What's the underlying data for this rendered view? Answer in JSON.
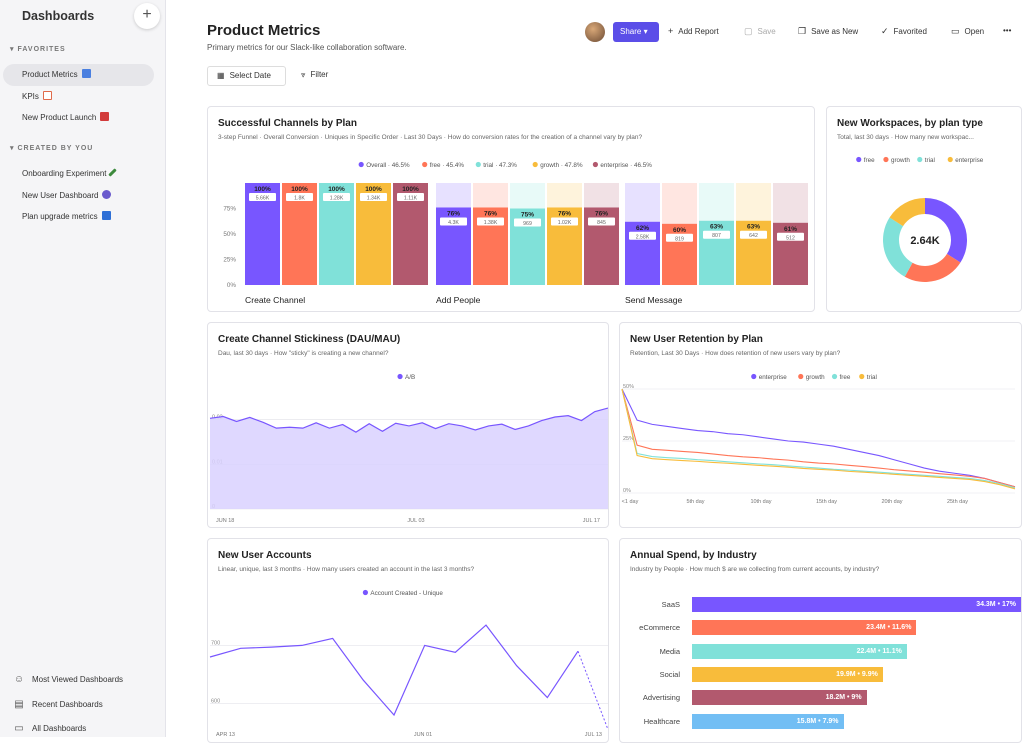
{
  "sidebar": {
    "title": "Dashboards",
    "add": "+",
    "favorites_header": "FAVORITES",
    "created_header": "CREATED BY YOU",
    "favorites": [
      {
        "label": "Product Metrics",
        "emoji_color": "#4a7fe0"
      },
      {
        "label": "KPIs",
        "emoji_color": "#e06a4a"
      },
      {
        "label": "New Product Launch",
        "emoji_color": "#d23b3b"
      }
    ],
    "created": [
      {
        "label": "Onboarding Experiment",
        "emoji_color": "#3d8a3d"
      },
      {
        "label": "New User Dashboard",
        "emoji_color": "#6a5acd"
      },
      {
        "label": "Plan upgrade metrics",
        "emoji_color": "#2e6fd6"
      }
    ],
    "bottom": [
      {
        "label": "Most Viewed Dashboards",
        "icon": "☺"
      },
      {
        "label": "Recent Dashboards",
        "icon": "▤"
      },
      {
        "label": "All Dashboards",
        "icon": "▭"
      }
    ]
  },
  "header": {
    "title": "Product Metrics",
    "subtitle": "Primary metrics for our Slack-like collaboration software.",
    "share": "Share",
    "add_report": "Add Report",
    "save": "Save",
    "save_as_new": "Save as New",
    "favorited": "Favorited",
    "open": "Open",
    "more": "•••",
    "select_date": "Select Date",
    "filter": "Filter"
  },
  "colors": {
    "accent": "#5b4ee8",
    "overall": "#7856ff",
    "free": "#ff7557",
    "trial": "#80e1d9",
    "growth": "#f8bc3b",
    "enterprise": "#b2596e",
    "healthcare": "#72bef4"
  },
  "cards": {
    "channels": {
      "title": "Successful Channels by Plan",
      "subtitle": "3-step Funnel · Overall Conversion · Uniques in Specific Order · Last 30 Days · How do conversion rates for the creation of a channel vary by plan?"
    },
    "workspaces": {
      "title": "New Workspaces, by plan type",
      "subtitle": "Total, last 30 days · How many new workspac...",
      "center": "2.64K"
    },
    "stickiness": {
      "title": "Create Channel Stickiness (DAU/MAU)",
      "subtitle": "Dau, last 30 days · How \"sticky\" is creating a new channel?"
    },
    "retention": {
      "title": "New User Retention by Plan",
      "subtitle": "Retention, Last 30 Days · How does retention of new users vary by plan?"
    },
    "accounts": {
      "title": "New User Accounts",
      "subtitle": "Linear, unique, last 3 months · How many users created an account in the last 3 months?"
    },
    "spend": {
      "title": "Annual Spend, by Industry",
      "subtitle": "Industry by People · How much $ are we collecting from current accounts, by industry?"
    }
  },
  "chart_data": [
    {
      "id": "funnel",
      "type": "bar",
      "legend": [
        "Overall · 46.5%",
        "free · 45.4%",
        "trial · 47.3%",
        "growth · 47.8%",
        "enterprise · 46.5%"
      ],
      "categories": [
        "Create Channel",
        "Add People",
        "Send Message"
      ],
      "series": [
        {
          "name": "Overall",
          "pct": [
            100,
            76,
            62
          ],
          "labels": [
            "5.66K",
            "4.3K",
            "2.58K"
          ]
        },
        {
          "name": "free",
          "pct": [
            100,
            76,
            60
          ],
          "labels": [
            "1.8K",
            "1.38K",
            "819"
          ]
        },
        {
          "name": "trial",
          "pct": [
            100,
            75,
            63
          ],
          "labels": [
            "1.28K",
            "969",
            "807"
          ]
        },
        {
          "name": "growth",
          "pct": [
            100,
            76,
            63
          ],
          "labels": [
            "1.34K",
            "1.02K",
            "642"
          ]
        },
        {
          "name": "enterprise",
          "pct": [
            100,
            76,
            61
          ],
          "labels": [
            "1.11K",
            "845",
            "512"
          ]
        }
      ],
      "yticks": [
        "0%",
        "25%",
        "50%",
        "75%"
      ],
      "ylim": [
        0,
        100
      ]
    },
    {
      "id": "workspaces",
      "type": "pie",
      "legend": [
        "free",
        "growth",
        "trial",
        "enterprise"
      ],
      "slices": [
        {
          "name": "enterprise",
          "value": 34
        },
        {
          "name": "free",
          "value": 24
        },
        {
          "name": "trial",
          "value": 26
        },
        {
          "name": "growth",
          "value": 16
        }
      ]
    },
    {
      "id": "stickiness",
      "type": "area",
      "legend": [
        "A/B"
      ],
      "ylim": [
        0,
        0.03
      ],
      "yticks": [
        "0",
        "0.01",
        "0.02"
      ],
      "xticks": [
        "JUN 18",
        "JUL 03",
        "JUL 17"
      ],
      "values": [
        0.0203,
        0.0207,
        0.0196,
        0.0205,
        0.0194,
        0.0181,
        0.0183,
        0.0181,
        0.0193,
        0.0181,
        0.0189,
        0.0172,
        0.0191,
        0.0174,
        0.0192,
        0.0186,
        0.0193,
        0.018,
        0.0191,
        0.0186,
        0.0177,
        0.0186,
        0.019,
        0.0178,
        0.0186,
        0.0198,
        0.0206,
        0.0209,
        0.0198,
        0.0218,
        0.0226
      ]
    },
    {
      "id": "retention",
      "type": "line",
      "legend": [
        "enterprise",
        "growth",
        "free",
        "trial"
      ],
      "xticks": [
        "<1 day",
        "5th day",
        "10th day",
        "15th day",
        "20th day",
        "25th day"
      ],
      "yticks": [
        "0%",
        "25%",
        "50%"
      ],
      "ylim": [
        0,
        50
      ],
      "series": [
        {
          "name": "enterprise",
          "values": [
            50,
            35,
            33,
            32,
            31,
            30,
            29.5,
            28.5,
            28,
            27,
            26,
            25,
            24.5,
            23.5,
            22.5,
            21,
            19.5,
            18,
            16,
            14,
            12,
            10.5,
            9.5,
            8.5,
            7,
            5,
            3
          ]
        },
        {
          "name": "growth",
          "values": [
            50,
            23,
            21,
            20.5,
            20,
            19.5,
            18.8,
            18,
            17.4,
            17,
            16.3,
            15.8,
            15,
            14.4,
            14,
            13.3,
            12.7,
            12,
            11.2,
            10.6,
            10,
            9.3,
            8.7,
            8,
            7,
            5,
            3
          ]
        },
        {
          "name": "free",
          "values": [
            50,
            19,
            17.5,
            17,
            16.6,
            16,
            15.6,
            15,
            14.5,
            14,
            13.6,
            13,
            12.5,
            12,
            11.4,
            11,
            10.5,
            10,
            9.5,
            9,
            8.5,
            8,
            7.5,
            7,
            6,
            4.5,
            2.5
          ]
        },
        {
          "name": "trial",
          "values": [
            50,
            18,
            16.5,
            16,
            15.6,
            15.2,
            14.7,
            14.3,
            13.8,
            13.3,
            12.9,
            12.4,
            11.8,
            11.4,
            11,
            10.4,
            10,
            9.5,
            9,
            8.5,
            8,
            7.5,
            7,
            6.5,
            5.5,
            4,
            2
          ]
        }
      ]
    },
    {
      "id": "accounts",
      "type": "line",
      "legend": [
        "Account Created - Unique"
      ],
      "yticks": [
        "600",
        "700"
      ],
      "xticks": [
        "APR 13",
        "JUN 01",
        "JUL 13"
      ],
      "ylim": [
        530,
        780
      ],
      "values": [
        680,
        695,
        697,
        700,
        712,
        640,
        580,
        700,
        688,
        735,
        665,
        610,
        690
      ],
      "projected": [
        690,
        555
      ]
    },
    {
      "id": "spend",
      "type": "bar",
      "orientation": "horizontal",
      "categories": [
        "SaaS",
        "eCommerce",
        "Media",
        "Social",
        "Advertising",
        "Healthcare"
      ],
      "values": [
        34.3,
        23.4,
        22.4,
        19.9,
        18.2,
        15.8
      ],
      "labels": [
        "34.3M • 17%",
        "23.4M • 11.6%",
        "22.4M • 11.1%",
        "19.9M • 9.9%",
        "18.2M • 9%",
        "15.8M • 7.9%"
      ]
    }
  ]
}
